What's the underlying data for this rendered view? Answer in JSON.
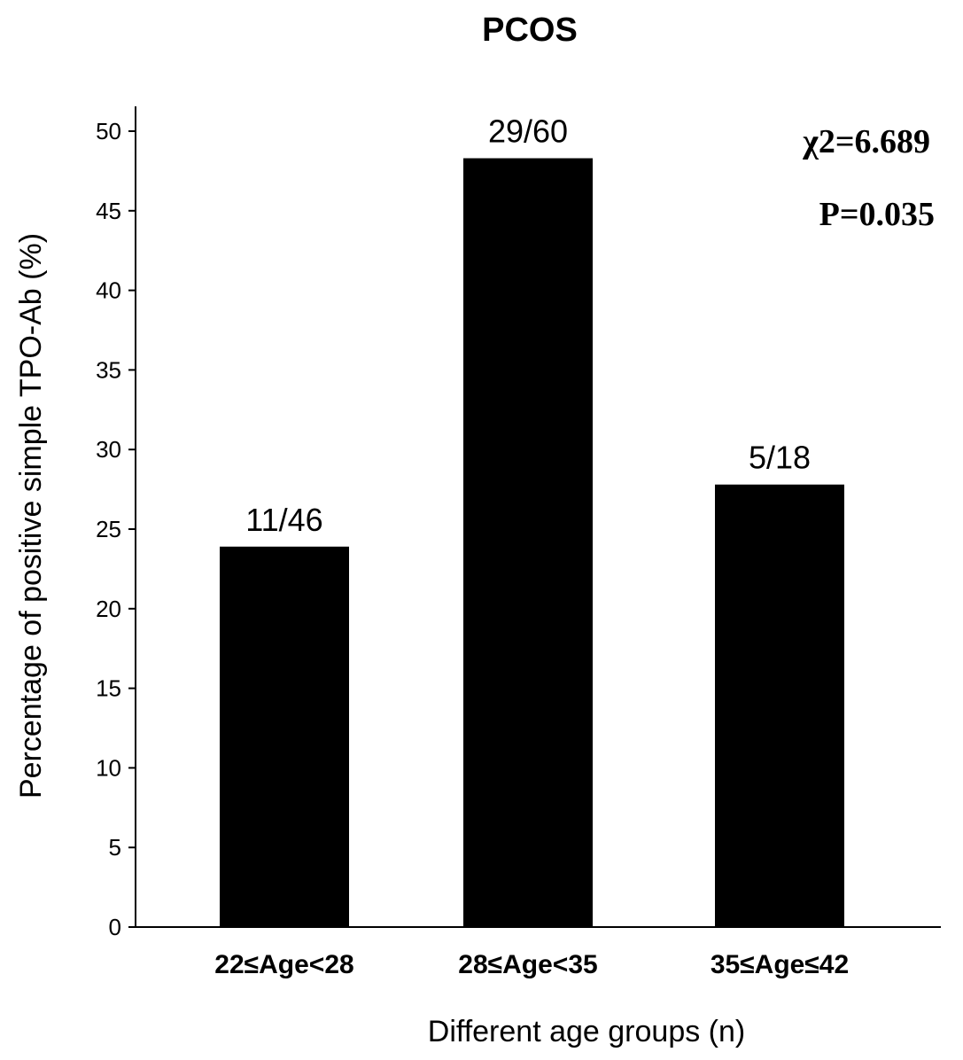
{
  "chart_data": {
    "type": "bar",
    "title": "PCOS",
    "xlabel": "Different age groups (n)",
    "ylabel": "Percentage of positive simple TPO-Ab (%)",
    "categories": [
      "22≤Age<28",
      "28≤Age<35",
      "35≤Age≤42"
    ],
    "values": [
      23.9,
      48.3,
      27.8
    ],
    "data_labels": [
      "11/46",
      "29/60",
      "5/18"
    ],
    "ylim": [
      0,
      52
    ],
    "yticks": [
      0,
      5,
      10,
      15,
      20,
      25,
      30,
      35,
      40,
      45,
      50
    ],
    "grid": false,
    "bar_color": "#000000",
    "annotations": [
      "χ2=6.689",
      "P=0.035"
    ]
  }
}
